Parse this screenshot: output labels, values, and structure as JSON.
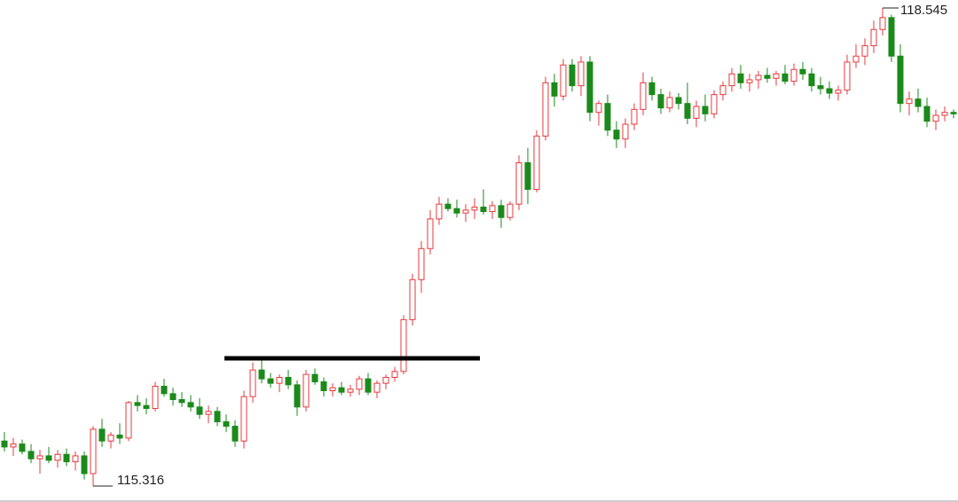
{
  "chart_data": {
    "type": "candlestick",
    "up_color": "#e8383d",
    "down_color": "#1a8a1a",
    "hline": 116.179,
    "high_label": 118.545,
    "low_label": 115.316,
    "ohlc": [
      [
        115.62,
        115.68,
        115.55,
        115.58
      ],
      [
        115.58,
        115.64,
        115.52,
        115.6
      ],
      [
        115.6,
        115.63,
        115.53,
        115.55
      ],
      [
        115.55,
        115.6,
        115.47,
        115.5
      ],
      [
        115.5,
        115.56,
        115.4,
        115.52
      ],
      [
        115.52,
        115.58,
        115.47,
        115.49
      ],
      [
        115.49,
        115.56,
        115.44,
        115.53
      ],
      [
        115.53,
        115.57,
        115.45,
        115.48
      ],
      [
        115.48,
        115.55,
        115.42,
        115.52
      ],
      [
        115.52,
        115.55,
        115.36,
        115.4
      ],
      [
        115.4,
        115.72,
        115.316,
        115.7
      ],
      [
        115.7,
        115.77,
        115.58,
        115.62
      ],
      [
        115.62,
        115.68,
        115.57,
        115.66
      ],
      [
        115.66,
        115.74,
        115.6,
        115.64
      ],
      [
        115.64,
        115.89,
        115.62,
        115.88
      ],
      [
        115.88,
        115.93,
        115.82,
        115.86
      ],
      [
        115.86,
        115.91,
        115.8,
        115.84
      ],
      [
        115.84,
        116.02,
        115.82,
        115.99
      ],
      [
        115.99,
        116.04,
        115.92,
        115.94
      ],
      [
        115.94,
        115.98,
        115.86,
        115.9
      ],
      [
        115.9,
        115.95,
        115.85,
        115.88
      ],
      [
        115.88,
        115.93,
        115.82,
        115.85
      ],
      [
        115.85,
        115.91,
        115.77,
        115.8
      ],
      [
        115.8,
        115.86,
        115.74,
        115.82
      ],
      [
        115.82,
        115.85,
        115.72,
        115.75
      ],
      [
        115.75,
        115.8,
        115.68,
        115.72
      ],
      [
        115.72,
        115.76,
        115.58,
        115.62
      ],
      [
        115.62,
        115.96,
        115.57,
        115.92
      ],
      [
        115.92,
        116.15,
        115.88,
        116.1
      ],
      [
        116.1,
        116.17,
        116.01,
        116.04
      ],
      [
        116.04,
        116.08,
        115.98,
        116.01
      ],
      [
        116.01,
        116.07,
        115.95,
        116.05
      ],
      [
        116.05,
        116.1,
        115.97,
        116.0
      ],
      [
        116.0,
        116.03,
        115.79,
        115.85
      ],
      [
        115.85,
        116.1,
        115.82,
        116.07
      ],
      [
        116.07,
        116.11,
        116.0,
        116.02
      ],
      [
        116.02,
        116.05,
        115.92,
        115.96
      ],
      [
        115.96,
        116.01,
        115.92,
        115.98
      ],
      [
        115.98,
        116.02,
        115.93,
        115.95
      ],
      [
        115.95,
        116.0,
        115.92,
        115.97
      ],
      [
        115.97,
        116.06,
        115.93,
        116.04
      ],
      [
        116.04,
        116.08,
        115.93,
        115.95
      ],
      [
        115.95,
        116.03,
        115.91,
        116.01
      ],
      [
        116.01,
        116.07,
        115.97,
        116.05
      ],
      [
        116.05,
        116.12,
        116.02,
        116.09
      ],
      [
        116.09,
        116.47,
        116.07,
        116.44
      ],
      [
        116.44,
        116.75,
        116.4,
        116.71
      ],
      [
        116.71,
        116.97,
        116.62,
        116.92
      ],
      [
        116.92,
        117.18,
        116.88,
        117.12
      ],
      [
        117.12,
        117.27,
        117.08,
        117.22
      ],
      [
        117.22,
        117.26,
        117.17,
        117.19
      ],
      [
        117.19,
        117.25,
        117.13,
        117.16
      ],
      [
        117.16,
        117.22,
        117.1,
        117.18
      ],
      [
        117.18,
        117.26,
        117.12,
        117.2
      ],
      [
        117.2,
        117.32,
        117.15,
        117.17
      ],
      [
        117.17,
        117.24,
        117.12,
        117.21
      ],
      [
        117.21,
        117.25,
        117.06,
        117.13
      ],
      [
        117.13,
        117.24,
        117.11,
        117.22
      ],
      [
        117.22,
        117.55,
        117.18,
        117.5
      ],
      [
        117.5,
        117.6,
        117.22,
        117.32
      ],
      [
        117.32,
        117.72,
        117.3,
        117.68
      ],
      [
        117.68,
        118.08,
        117.65,
        118.04
      ],
      [
        118.04,
        118.1,
        117.88,
        117.95
      ],
      [
        117.95,
        118.2,
        117.92,
        118.16
      ],
      [
        118.16,
        118.2,
        117.98,
        118.02
      ],
      [
        118.02,
        118.22,
        117.95,
        118.18
      ],
      [
        118.18,
        118.22,
        117.78,
        117.84
      ],
      [
        117.84,
        117.92,
        117.75,
        117.9
      ],
      [
        117.9,
        117.96,
        117.68,
        117.72
      ],
      [
        117.72,
        117.78,
        117.6,
        117.66
      ],
      [
        117.66,
        117.8,
        117.6,
        117.76
      ],
      [
        117.76,
        117.9,
        117.72,
        117.86
      ],
      [
        117.86,
        118.11,
        117.82,
        118.04
      ],
      [
        118.04,
        118.08,
        117.92,
        117.96
      ],
      [
        117.96,
        118.0,
        117.83,
        117.87
      ],
      [
        117.87,
        117.98,
        117.84,
        117.94
      ],
      [
        117.94,
        117.97,
        117.86,
        117.9
      ],
      [
        117.9,
        118.04,
        117.76,
        117.8
      ],
      [
        117.8,
        117.92,
        117.74,
        117.88
      ],
      [
        117.88,
        117.96,
        117.78,
        117.83
      ],
      [
        117.83,
        117.99,
        117.8,
        117.96
      ],
      [
        117.96,
        118.05,
        117.92,
        118.02
      ],
      [
        118.02,
        118.14,
        117.98,
        118.1
      ],
      [
        118.1,
        118.16,
        118.0,
        118.04
      ],
      [
        118.04,
        118.1,
        117.98,
        118.06
      ],
      [
        118.06,
        118.12,
        118.0,
        118.09
      ],
      [
        118.09,
        118.14,
        118.04,
        118.07
      ],
      [
        118.07,
        118.12,
        118.02,
        118.1
      ],
      [
        118.1,
        118.16,
        118.03,
        118.05
      ],
      [
        118.05,
        118.17,
        118.02,
        118.13
      ],
      [
        118.13,
        118.18,
        118.06,
        118.1
      ],
      [
        118.1,
        118.14,
        117.98,
        118.02
      ],
      [
        118.02,
        118.08,
        117.96,
        118.0
      ],
      [
        118.0,
        118.05,
        117.93,
        117.97
      ],
      [
        117.97,
        118.02,
        117.92,
        117.99
      ],
      [
        117.99,
        118.23,
        117.96,
        118.18
      ],
      [
        118.18,
        118.3,
        118.14,
        118.22
      ],
      [
        118.22,
        118.34,
        118.16,
        118.29
      ],
      [
        118.29,
        118.46,
        118.24,
        118.4
      ],
      [
        118.4,
        118.545,
        118.36,
        118.48
      ],
      [
        118.48,
        118.5,
        118.18,
        118.22
      ],
      [
        118.22,
        118.3,
        117.84,
        117.9
      ],
      [
        117.9,
        117.98,
        117.82,
        117.93
      ],
      [
        117.93,
        118.0,
        117.84,
        117.88
      ],
      [
        117.88,
        117.94,
        117.74,
        117.78
      ],
      [
        117.78,
        117.86,
        117.72,
        117.82
      ],
      [
        117.82,
        117.88,
        117.78,
        117.84
      ],
      [
        117.84,
        117.86,
        117.8,
        117.83
      ]
    ]
  }
}
